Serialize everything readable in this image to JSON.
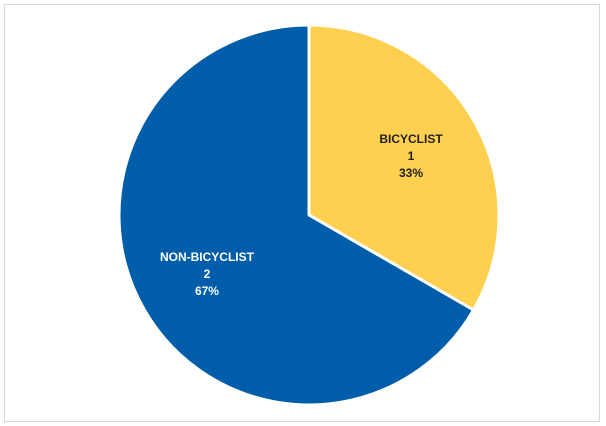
{
  "chart_data": {
    "type": "pie",
    "title": "",
    "categories": [
      "BICYCLIST",
      "NON-BICYCLIST"
    ],
    "values": [
      1,
      2
    ],
    "percentages": [
      "33%",
      "67%"
    ],
    "colors": [
      "#FFD04F",
      "#005DAA"
    ],
    "label_colors": [
      "#1f1f1f",
      "#ffffff"
    ],
    "start_angle_deg": 0,
    "direction": "clockwise",
    "legend": "none",
    "data_labels": "category, value, percentage"
  }
}
